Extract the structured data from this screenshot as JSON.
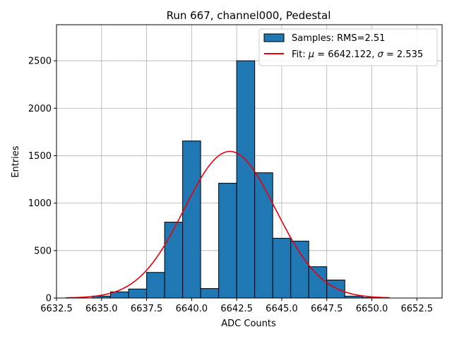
{
  "chart_data": {
    "type": "bar",
    "title": "Run 667, channel000, Pedestal",
    "xlabel": "ADC Counts",
    "ylabel": "Entries",
    "xlim": [
      6632.5,
      6653.9
    ],
    "ylim": [
      0,
      2880
    ],
    "grid": true,
    "legend_position": "top-right",
    "x_ticks": [
      6632.5,
      6635.0,
      6637.5,
      6640.0,
      6642.5,
      6645.0,
      6647.5,
      6650.0,
      6652.5
    ],
    "x_tick_labels": [
      "6632.5",
      "6635.0",
      "6637.5",
      "6640.0",
      "6642.5",
      "6645.0",
      "6647.5",
      "6650.0",
      "6652.5"
    ],
    "y_ticks": [
      0,
      500,
      1000,
      1500,
      2000,
      2500
    ],
    "y_tick_labels": [
      "0",
      "500",
      "1000",
      "1500",
      "2000",
      "2500"
    ],
    "series": [
      {
        "name": "Samples: RMS=2.51",
        "kind": "histogram",
        "color": "#1f77b4",
        "edge_color": "#000000",
        "bin_edges": [
          6634.5,
          6635.5,
          6636.5,
          6637.5,
          6638.5,
          6639.5,
          6640.5,
          6641.5,
          6642.5,
          6643.5,
          6644.5,
          6645.5,
          6646.5,
          6647.5,
          6648.5,
          6649.5,
          6650.5
        ],
        "counts": [
          20,
          65,
          95,
          270,
          800,
          1655,
          100,
          1210,
          2500,
          1320,
          630,
          600,
          330,
          190,
          20,
          5
        ]
      },
      {
        "name_prefix": "Fit: ",
        "name_mu_symbol": "μ",
        "name_mu_text": " = 6642.122, ",
        "name_sigma_symbol": "σ",
        "name_sigma_text": " = 2.535",
        "kind": "line",
        "color": "#e8000b",
        "mu": 6642.122,
        "sigma": 2.535,
        "amplitude": 1545,
        "x_range": [
          6633.0,
          6651.0
        ]
      }
    ]
  }
}
